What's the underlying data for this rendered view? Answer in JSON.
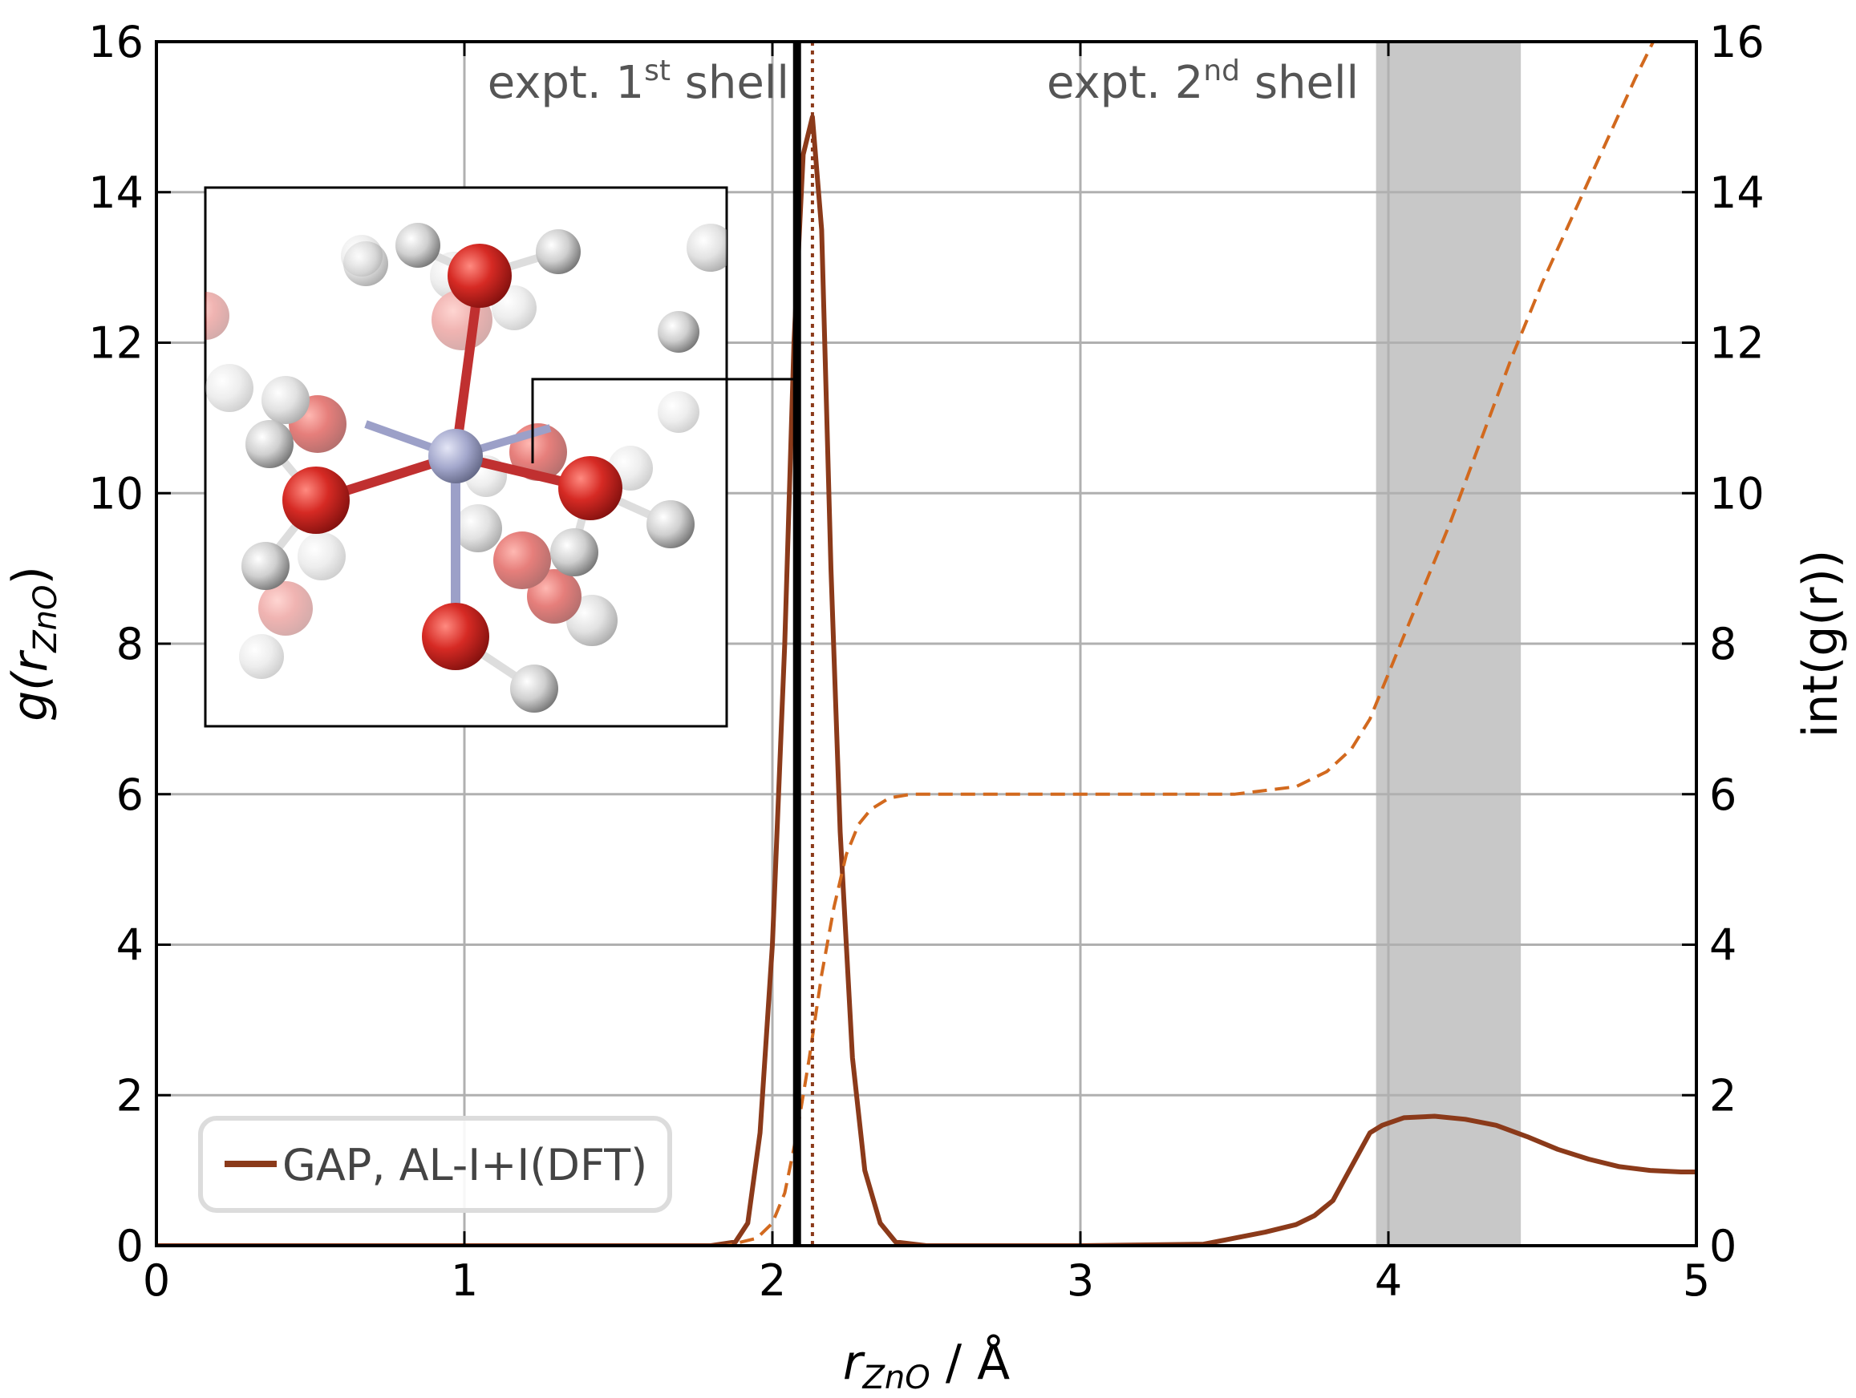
{
  "chart_data": {
    "type": "line",
    "xlabel": {
      "main": "r",
      "sub": "ZnO",
      "unit": " / Å"
    },
    "ylabel_left": {
      "main": "g(r",
      "sub": "ZnO",
      "close": ")"
    },
    "ylabel_right": "int(g(r))",
    "xlim": [
      0,
      5
    ],
    "ylim": [
      0,
      16
    ],
    "ylim_right": [
      0,
      16
    ],
    "xticks": [
      "0",
      "1",
      "2",
      "3",
      "4",
      "5"
    ],
    "yticks": [
      "0",
      "2",
      "4",
      "6",
      "8",
      "10",
      "12",
      "14",
      "16"
    ],
    "yticks_right": [
      "0",
      "2",
      "4",
      "6",
      "8",
      "10",
      "12",
      "14",
      "16"
    ],
    "grid": true,
    "legend_position": "bottom-left",
    "annotations": [
      {
        "text": "expt. 1",
        "sup": "st",
        "tail": " shell"
      },
      {
        "text": "expt. 2",
        "sup": "nd",
        "tail": " shell"
      }
    ],
    "vlines": {
      "expt_first_shell": 2.08,
      "gap_peak": 2.13
    },
    "shaded_band": {
      "x0": 3.96,
      "x1": 4.43,
      "color": "#c8c8c8"
    },
    "series": [
      {
        "name": "GAP, AL-I+I(DFT)",
        "style": "solid",
        "axis": "left",
        "color": "#8b3a1a",
        "x": [
          0,
          1.8,
          1.88,
          1.92,
          1.96,
          2.0,
          2.04,
          2.07,
          2.1,
          2.13,
          2.16,
          2.19,
          2.22,
          2.26,
          2.3,
          2.35,
          2.4,
          2.5,
          3.0,
          3.4,
          3.5,
          3.6,
          3.7,
          3.76,
          3.82,
          3.86,
          3.9,
          3.94,
          3.98,
          4.05,
          4.15,
          4.25,
          4.35,
          4.45,
          4.55,
          4.65,
          4.75,
          4.85,
          4.95,
          5.0
        ],
        "y": [
          0,
          0,
          0.05,
          0.3,
          1.5,
          4.0,
          8.0,
          12.0,
          14.5,
          15.0,
          13.5,
          9.0,
          5.5,
          2.5,
          1.0,
          0.3,
          0.05,
          0,
          0,
          0.02,
          0.1,
          0.18,
          0.28,
          0.4,
          0.6,
          0.9,
          1.2,
          1.5,
          1.6,
          1.7,
          1.72,
          1.68,
          1.6,
          1.45,
          1.28,
          1.15,
          1.05,
          1.0,
          0.98,
          0.98
        ]
      },
      {
        "name": "",
        "style": "dashed",
        "axis": "right",
        "color": "#d2691e",
        "x": [
          0,
          1.85,
          1.95,
          2.0,
          2.04,
          2.08,
          2.12,
          2.16,
          2.2,
          2.24,
          2.28,
          2.32,
          2.38,
          2.45,
          3.0,
          3.5,
          3.7,
          3.8,
          3.88,
          3.94,
          4.0,
          4.1,
          4.2,
          4.3,
          4.4,
          4.5,
          4.6,
          4.7,
          4.8,
          4.86
        ],
        "y": [
          0,
          0,
          0.1,
          0.3,
          0.7,
          1.5,
          2.5,
          3.6,
          4.5,
          5.2,
          5.6,
          5.8,
          5.95,
          6.0,
          6.0,
          6.0,
          6.1,
          6.3,
          6.6,
          7.0,
          7.6,
          8.6,
          9.6,
          10.7,
          11.8,
          12.8,
          13.7,
          14.6,
          15.5,
          16.0
        ]
      }
    ]
  },
  "inset": {
    "description_icon": "molecule-icon",
    "colors": {
      "zinc": "#a0a4c8",
      "oxygen": "#cc2222",
      "hydrogen": "#cfcfcf",
      "bond_o": "#c03030",
      "bond_zn": "#9ca0c8"
    }
  }
}
